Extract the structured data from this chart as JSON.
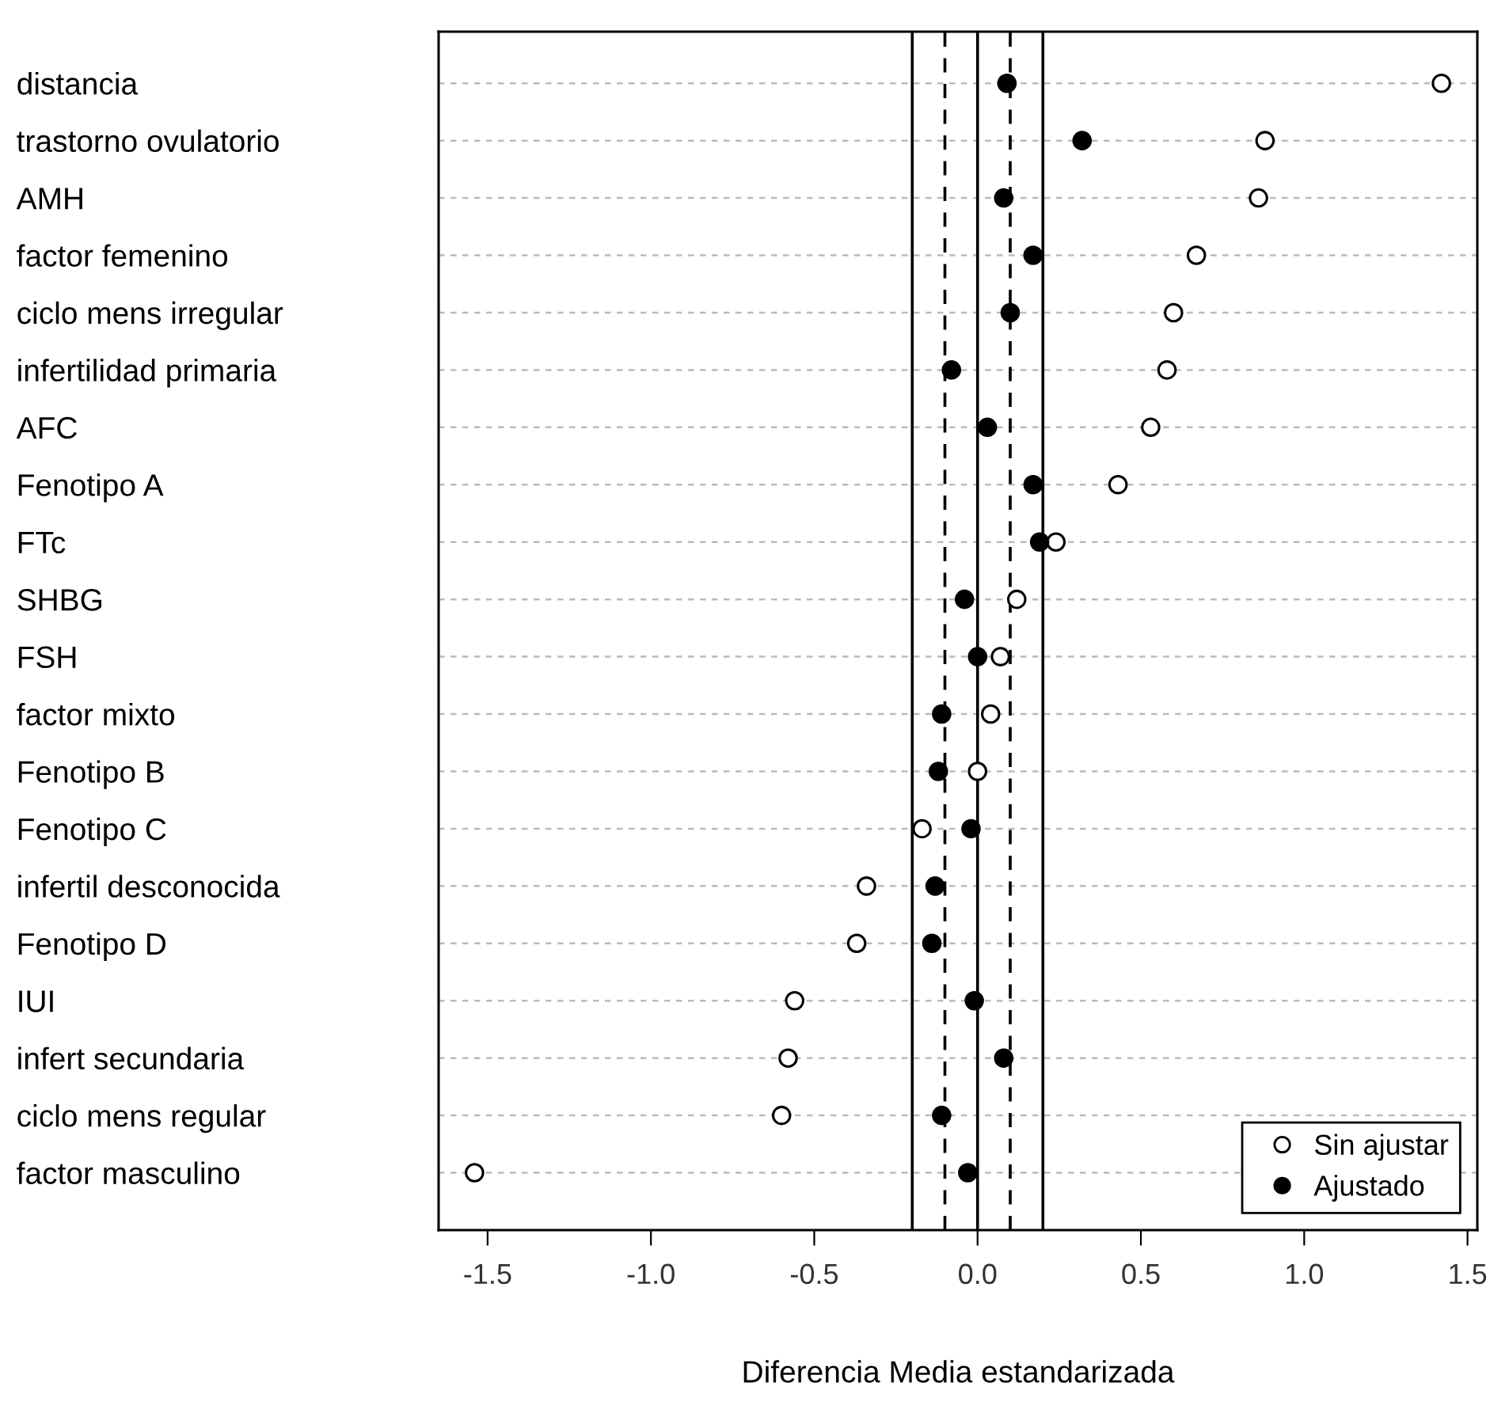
{
  "chart_data": {
    "type": "scatter",
    "orientation": "horizontal",
    "xlabel": "Diferencia Media estandarizada",
    "categories": [
      "distancia",
      "trastorno ovulatorio",
      "AMH",
      "factor femenino",
      "ciclo mens irregular",
      "infertilidad primaria",
      "AFC",
      "Fenotipo A",
      "FTc",
      "SHBG",
      "FSH",
      "factor mixto",
      "Fenotipo B",
      "Fenotipo C",
      "infertil desconocida",
      "Fenotipo D",
      "IUI",
      "infert secundaria",
      "ciclo mens regular",
      "factor masculino"
    ],
    "series": [
      {
        "name": "Sin ajustar",
        "color": "#ffffff",
        "values": [
          1.42,
          0.88,
          0.86,
          0.67,
          0.6,
          0.58,
          0.53,
          0.43,
          0.24,
          0.12,
          0.07,
          0.04,
          0.0,
          -0.17,
          -0.34,
          -0.37,
          -0.56,
          -0.58,
          -0.6,
          -1.54
        ]
      },
      {
        "name": "Ajustado",
        "color": "#000000",
        "values": [
          0.09,
          0.32,
          0.08,
          0.17,
          0.1,
          -0.08,
          0.03,
          0.17,
          0.19,
          -0.04,
          0.0,
          -0.11,
          -0.12,
          -0.02,
          -0.13,
          -0.14,
          -0.01,
          0.08,
          -0.11,
          -0.03
        ]
      }
    ],
    "xlim": [
      -1.65,
      1.53
    ],
    "xticks": [
      -1.5,
      {
        "value": -1.0,
        "label": "-1.0"
      },
      -0.5,
      {
        "value": 0.0,
        "label": "0.0"
      },
      0.5,
      {
        "value": 1.0,
        "label": "1.0"
      },
      1.5
    ],
    "ref_lines": [
      {
        "axis": "x",
        "value": -0.2,
        "line_style": "solid",
        "color": "#000000"
      },
      {
        "axis": "x",
        "value": -0.1,
        "line_style": "dashed",
        "color": "#000000"
      },
      {
        "axis": "x",
        "value": 0,
        "line_style": "solid",
        "color": "#000000"
      },
      {
        "axis": "x",
        "value": 0.1,
        "line_style": "dashed",
        "color": "#000000"
      },
      {
        "axis": "x",
        "value": 0.2,
        "line_style": "solid",
        "color": "#000000"
      }
    ],
    "grid": "y",
    "marker": "circle",
    "legend": "bottom right"
  }
}
